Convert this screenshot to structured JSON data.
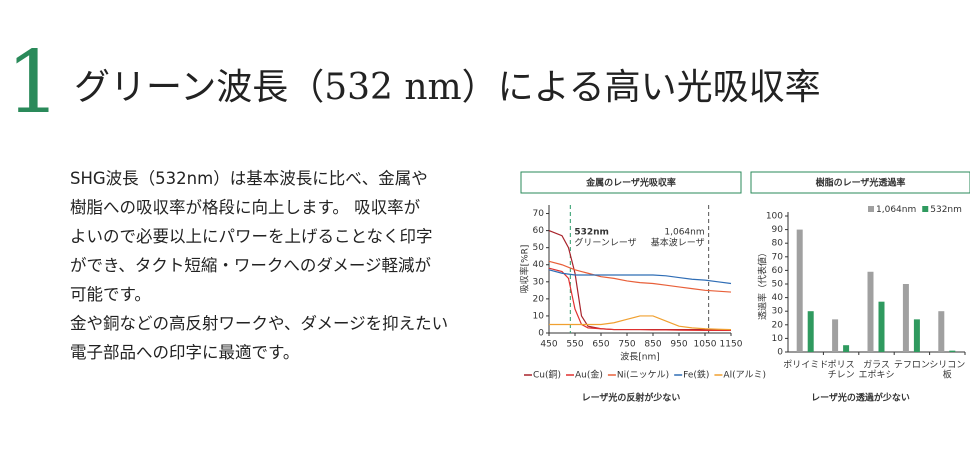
{
  "header": {
    "number": "1",
    "title": "グリーン波長（532 nm）による高い光吸収率"
  },
  "body": [
    "SHG波長（532nm）は基本波長に比べ、金属や",
    "樹脂への吸収率が格段に向上します。 吸収率が",
    "よいので必要以上にパワーを上げることなく印字",
    "ができ、タクト短縮・ワークへのダメージ軽減が",
    "可能です。",
    "金や銅などの高反射ワークや、ダメージを抑えたい",
    "電子部品への印字に最適です。"
  ],
  "chart_data": [
    {
      "type": "line",
      "title": "金属のレーザ光吸収率",
      "ylabel": "吸収率[%R]",
      "xlabel": "波長[nm]",
      "caption": "レーザ光の反射が少ない",
      "x": [
        450,
        500,
        525,
        550,
        575,
        600,
        650,
        700,
        750,
        800,
        850,
        900,
        950,
        1000,
        1050,
        1100,
        1150
      ],
      "series": [
        {
          "name": "Cu(銅)",
          "color": "#a8232b",
          "values": [
            60,
            57,
            50,
            35,
            10,
            4,
            2.5,
            2,
            2,
            2,
            2,
            2,
            2,
            2,
            2,
            2,
            2
          ]
        },
        {
          "name": "Au(金)",
          "color": "#e0302f",
          "values": [
            38,
            36,
            32,
            14,
            5,
            3,
            2.5,
            2,
            2,
            2,
            1.8,
            1.8,
            1.7,
            1.6,
            1.5,
            1.5,
            1.5
          ]
        },
        {
          "name": "Ni(ニッケル)",
          "color": "#e8603a",
          "values": [
            42,
            40,
            38.5,
            37,
            36,
            35,
            33,
            32,
            30.5,
            29.5,
            29,
            28,
            27,
            26,
            25,
            24.5,
            24
          ]
        },
        {
          "name": "Fe(鉄)",
          "color": "#2f6db5",
          "values": [
            37,
            35,
            34.5,
            34,
            34,
            34,
            34,
            34,
            34,
            34,
            34,
            33.5,
            32.5,
            31.5,
            31,
            30,
            29
          ]
        },
        {
          "name": "Al(アルミ)",
          "color": "#f0a030",
          "values": [
            5,
            5,
            5,
            5,
            5,
            5,
            5,
            6,
            8,
            10,
            10,
            7,
            4,
            3,
            2.5,
            2.2,
            2
          ]
        }
      ],
      "vlines": [
        {
          "x": 532,
          "label": "532nm",
          "sublabel": "グリーンレーザ",
          "color": "#2a9a68"
        },
        {
          "x": 1064,
          "label": "1,064nm",
          "sublabel": "基本波レーザ",
          "color": "#555555"
        }
      ],
      "xlim": [
        450,
        1150
      ],
      "xticks": [
        450,
        550,
        650,
        750,
        850,
        950,
        1050,
        1150
      ],
      "ylim": [
        0,
        75
      ],
      "yticks": [
        0,
        10,
        20,
        30,
        40,
        50,
        60,
        70
      ],
      "grid": false
    },
    {
      "type": "bar",
      "title": "樹脂のレーザ光透過率",
      "ylabel": "透過率（代表値）",
      "caption": "レーザ光の透過が少ない",
      "categories": [
        [
          "ポリイミド"
        ],
        [
          "ポリス",
          "チレン"
        ],
        [
          "ガラス",
          "エポキシ"
        ],
        [
          "テフロン"
        ],
        [
          "シリコン",
          "板"
        ]
      ],
      "series": [
        {
          "name": "1,064nm",
          "color": "#a0a0a0",
          "values": [
            90,
            24,
            59,
            50,
            30
          ]
        },
        {
          "name": "532nm",
          "color": "#2f9a5f",
          "values": [
            30,
            5,
            37,
            24,
            1
          ]
        }
      ],
      "ylim": [
        0,
        100
      ],
      "yticks": [
        0,
        10,
        20,
        30,
        40,
        50,
        60,
        70,
        80,
        90,
        100
      ],
      "grid": false
    }
  ]
}
